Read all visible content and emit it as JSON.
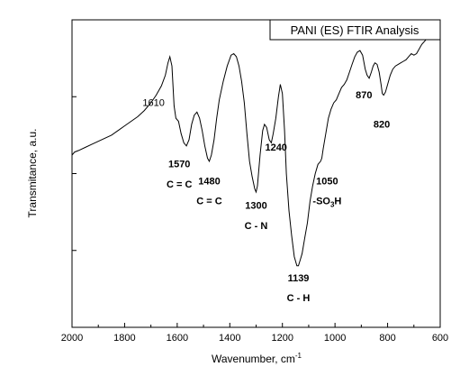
{
  "chart_data": {
    "type": "line",
    "title": "PANI (ES) FTIR Analysis",
    "xlabel": "Wavenumber, cm",
    "xlabel_superscript": "-1",
    "ylabel": "Transmitance, a.u.",
    "xlim": [
      2000,
      600
    ],
    "x_reversed": true,
    "ylim": [
      0,
      100
    ],
    "y_ticks_labeled": false,
    "x_ticks": [
      2000,
      1800,
      1600,
      1400,
      1200,
      1000,
      800,
      600
    ],
    "x_tick_labels": [
      "2000",
      "1800",
      "1600",
      "1400",
      "1200",
      "1000",
      "800",
      "600"
    ],
    "grid": false,
    "series": [
      {
        "x": [
          2000,
          1990,
          1975,
          1950,
          1925,
          1900,
          1875,
          1850,
          1825,
          1800,
          1775,
          1750,
          1725,
          1700,
          1680,
          1660,
          1645,
          1635,
          1628,
          1620,
          1612,
          1605,
          1595,
          1585,
          1575,
          1565,
          1555,
          1545,
          1535,
          1525,
          1515,
          1505,
          1495,
          1485,
          1478,
          1470,
          1460,
          1450,
          1440,
          1425,
          1410,
          1395,
          1385,
          1375,
          1365,
          1355,
          1345,
          1335,
          1325,
          1315,
          1305,
          1300,
          1295,
          1285,
          1275,
          1268,
          1260,
          1250,
          1242,
          1235,
          1225,
          1215,
          1208,
          1200,
          1192,
          1185,
          1175,
          1165,
          1155,
          1145,
          1139,
          1132,
          1125,
          1115,
          1105,
          1095,
          1085,
          1075,
          1065,
          1055,
          1050,
          1045,
          1035,
          1025,
          1015,
          1005,
          995,
          985,
          975,
          965,
          955,
          945,
          935,
          925,
          915,
          905,
          895,
          885,
          878,
          870,
          862,
          855,
          848,
          840,
          832,
          825,
          820,
          815,
          808,
          800,
          790,
          780,
          770,
          760,
          750,
          740,
          730,
          720,
          710,
          700,
          690,
          680,
          670,
          660,
          650,
          640,
          630,
          622,
          616,
          612,
          608,
          604,
          600
        ],
        "y": [
          56,
          57,
          57.5,
          58.5,
          59.5,
          60.5,
          61.5,
          62.5,
          64,
          65.5,
          67,
          68.5,
          70.5,
          73,
          75.5,
          78.5,
          82,
          86,
          88,
          85,
          72,
          68,
          67,
          63,
          60,
          59,
          61,
          66,
          69,
          70,
          68,
          64,
          59,
          55,
          54,
          56,
          61,
          68,
          74,
          80,
          85,
          88.5,
          89,
          88,
          85,
          80,
          73,
          63,
          54,
          49,
          45,
          44,
          46,
          56,
          64,
          66,
          65,
          61,
          60,
          63,
          68,
          75,
          79,
          76,
          64,
          50,
          38,
          30,
          23,
          20,
          20,
          22,
          24,
          29,
          34,
          41,
          46,
          50,
          53,
          54,
          55,
          58,
          63,
          68,
          71,
          73,
          74,
          76,
          78,
          79,
          80.5,
          83,
          85.5,
          88,
          89.5,
          90,
          88.5,
          84,
          82,
          81,
          83,
          85,
          86,
          85.5,
          83,
          79,
          76,
          75.5,
          76.5,
          79,
          82,
          84,
          85,
          85.5,
          86,
          86.5,
          87,
          88,
          89,
          88.5,
          89,
          90.5,
          92,
          93,
          94,
          95,
          96,
          95,
          96.5,
          97.5,
          96,
          97,
          96
        ]
      }
    ],
    "annotations": [
      {
        "text": "1610",
        "x": 1690,
        "y": 72,
        "weight": "normal"
      },
      {
        "text": "1570",
        "x": 1592,
        "y": 52,
        "weight": "bold"
      },
      {
        "text": "C = C",
        "x": 1592,
        "y": 45.5,
        "weight": "bold"
      },
      {
        "text": "1480",
        "x": 1478,
        "y": 46.5,
        "weight": "bold"
      },
      {
        "text": "C = C",
        "x": 1478,
        "y": 40,
        "weight": "bold"
      },
      {
        "text": "1300",
        "x": 1300,
        "y": 38.5,
        "weight": "bold"
      },
      {
        "text": "C - N",
        "x": 1300,
        "y": 32,
        "weight": "bold"
      },
      {
        "text": "1240",
        "x": 1224,
        "y": 57.5,
        "weight": "bold"
      },
      {
        "text": "1139",
        "x": 1139,
        "y": 15,
        "weight": "bold"
      },
      {
        "text": "C - H",
        "x": 1139,
        "y": 8.5,
        "weight": "bold"
      },
      {
        "text": "1050",
        "x": 1030,
        "y": 46.5,
        "weight": "bold"
      },
      {
        "text": "-SO",
        "x": 1030,
        "y": 40,
        "weight": "bold",
        "subscript": "3",
        "suffix": "H"
      },
      {
        "text": "870",
        "x": 890,
        "y": 74.5,
        "weight": "bold"
      },
      {
        "text": "820",
        "x": 822,
        "y": 65,
        "weight": "bold"
      }
    ],
    "legend": "none"
  }
}
